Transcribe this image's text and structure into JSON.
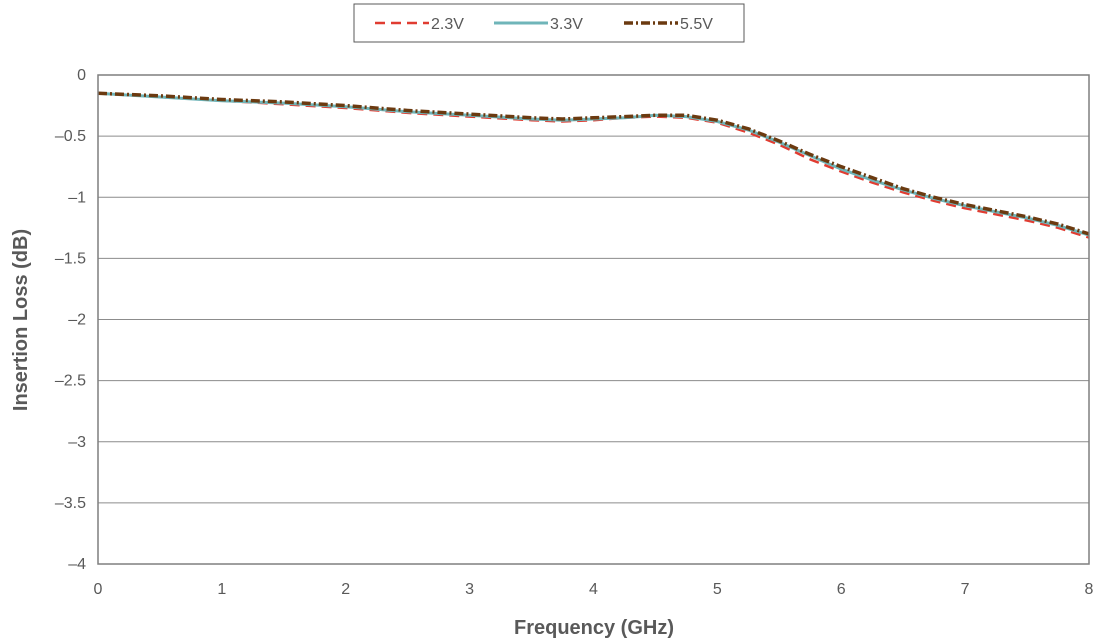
{
  "chart_data": {
    "type": "line",
    "xlabel": "Frequency (GHz)",
    "ylabel": "Insertion Loss (dB)",
    "xlim": [
      0,
      8
    ],
    "ylim": [
      -4,
      0
    ],
    "xticks": [
      0,
      1,
      2,
      3,
      4,
      5,
      6,
      7,
      8
    ],
    "yticks": [
      0,
      -0.5,
      -1,
      -1.5,
      -2,
      -2.5,
      -3,
      -3.5,
      -4
    ],
    "ytick_labels": [
      "0",
      "–0.5",
      "–1",
      "–1.5",
      "–2",
      "–2.5",
      "–3",
      "–3.5",
      "–4"
    ],
    "grid": "horizontal",
    "legend_position": "top-center",
    "series": [
      {
        "name": "2.3V",
        "color": "#e03c31",
        "style": "dashed",
        "x": [
          0,
          0.5,
          1,
          1.5,
          2,
          2.5,
          3,
          3.5,
          3.75,
          4,
          4.25,
          4.5,
          4.75,
          5,
          5.25,
          5.5,
          5.75,
          6,
          6.25,
          6.5,
          6.75,
          7,
          7.25,
          7.5,
          7.75,
          8
        ],
        "values": [
          -0.15,
          -0.18,
          -0.21,
          -0.24,
          -0.27,
          -0.31,
          -0.34,
          -0.37,
          -0.38,
          -0.37,
          -0.35,
          -0.34,
          -0.35,
          -0.39,
          -0.47,
          -0.57,
          -0.69,
          -0.79,
          -0.88,
          -0.96,
          -1.03,
          -1.09,
          -1.14,
          -1.19,
          -1.25,
          -1.33
        ]
      },
      {
        "name": "3.3V",
        "color": "#6fb5b9",
        "style": "solid",
        "x": [
          0,
          0.5,
          1,
          1.5,
          2,
          2.5,
          3,
          3.5,
          3.75,
          4,
          4.25,
          4.5,
          4.75,
          5,
          5.25,
          5.5,
          5.75,
          6,
          6.25,
          6.5,
          6.75,
          7,
          7.25,
          7.5,
          7.75,
          8
        ],
        "values": [
          -0.15,
          -0.18,
          -0.21,
          -0.23,
          -0.26,
          -0.3,
          -0.33,
          -0.36,
          -0.37,
          -0.36,
          -0.35,
          -0.33,
          -0.34,
          -0.38,
          -0.45,
          -0.55,
          -0.66,
          -0.77,
          -0.86,
          -0.94,
          -1.01,
          -1.07,
          -1.12,
          -1.17,
          -1.23,
          -1.31
        ]
      },
      {
        "name": "5.5V",
        "color": "#6b3a10",
        "style": "dashdot",
        "x": [
          0,
          0.5,
          1,
          1.5,
          2,
          2.5,
          3,
          3.5,
          3.75,
          4,
          4.25,
          4.5,
          4.75,
          5,
          5.25,
          5.5,
          5.75,
          6,
          6.25,
          6.5,
          6.75,
          7,
          7.25,
          7.5,
          7.75,
          8
        ],
        "values": [
          -0.15,
          -0.17,
          -0.2,
          -0.22,
          -0.25,
          -0.29,
          -0.32,
          -0.35,
          -0.36,
          -0.35,
          -0.34,
          -0.33,
          -0.33,
          -0.37,
          -0.44,
          -0.54,
          -0.65,
          -0.75,
          -0.84,
          -0.93,
          -1.0,
          -1.06,
          -1.11,
          -1.16,
          -1.22,
          -1.3
        ]
      }
    ]
  }
}
